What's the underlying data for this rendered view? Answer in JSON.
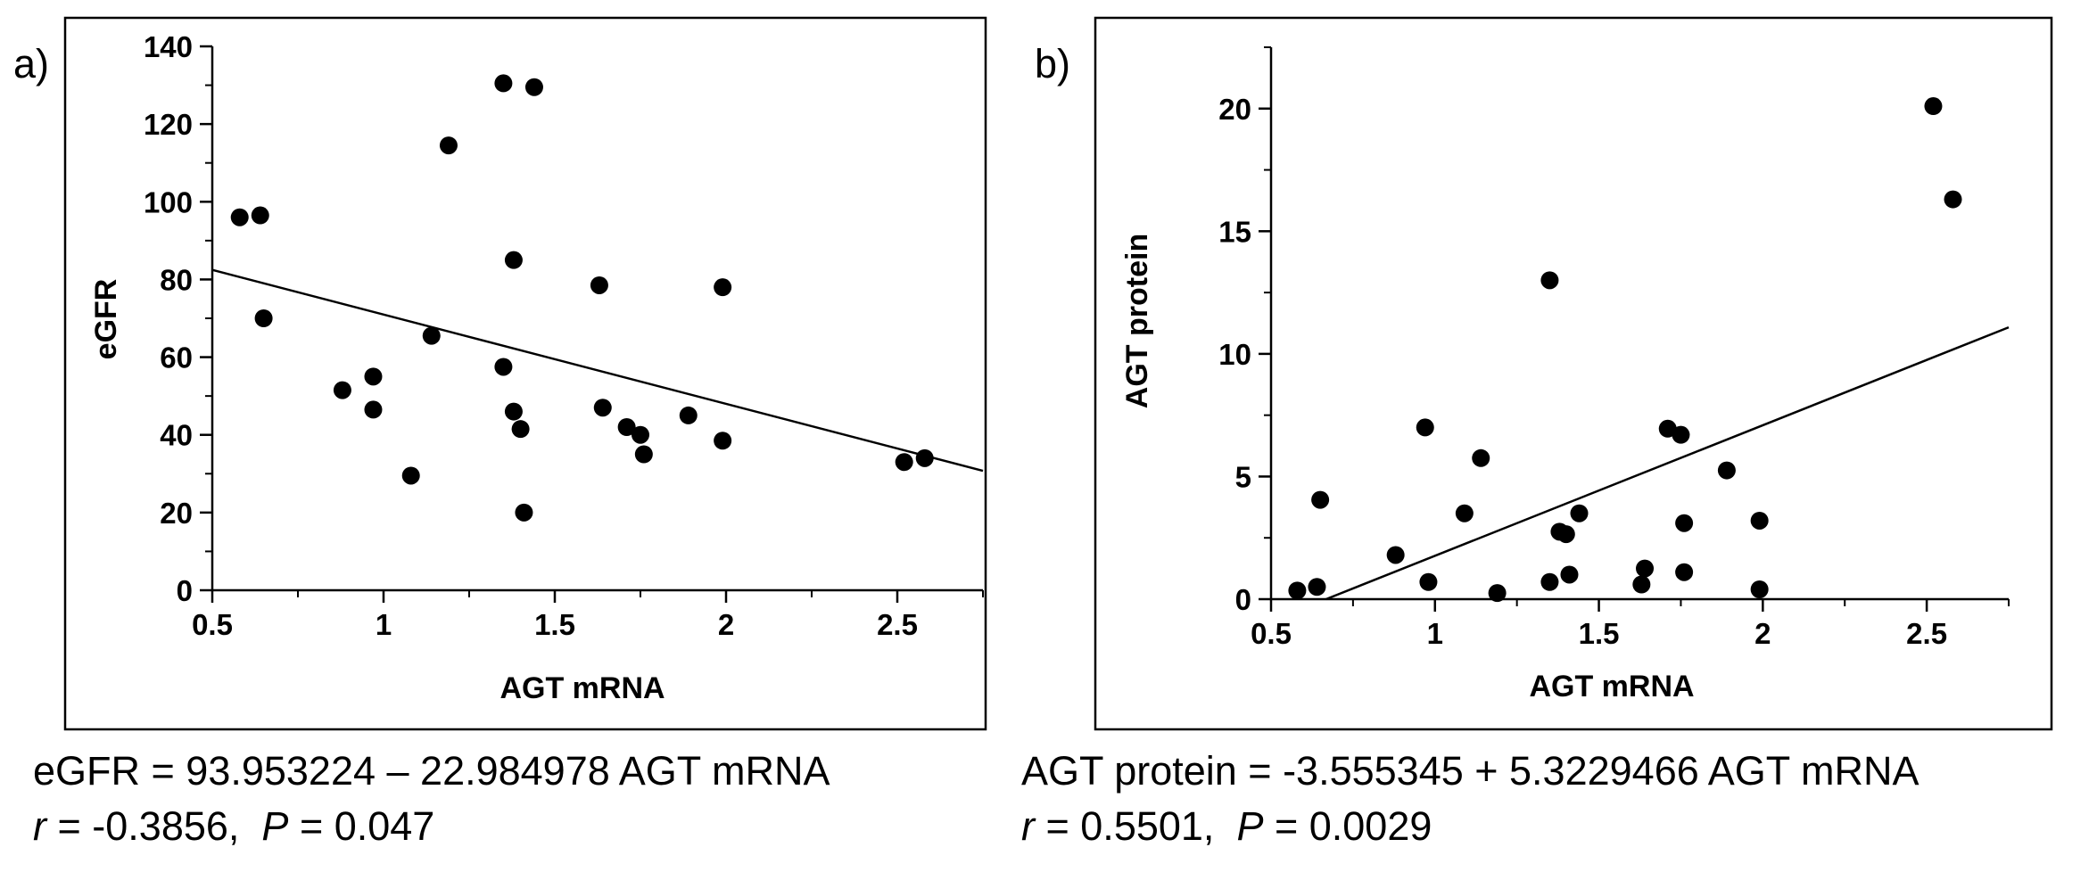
{
  "panels": [
    {
      "label": "a)",
      "xlabel": "AGT mRNA",
      "ylabel": "eGFR",
      "equation": "eGFR = 93.953224 – 22.984978  AGT mRNA",
      "r_label": "r",
      "r_value": " = -0.3856,  ",
      "p_label": "P",
      "p_value": " = 0.047"
    },
    {
      "label": "b)",
      "xlabel": "AGT mRNA",
      "ylabel": "AGT protein",
      "equation": "AGT protein = -3.555345 + 5.3229466  AGT mRNA",
      "r_label": "r",
      "r_value": " = 0.5501,  ",
      "p_label": "P",
      "p_value": " = 0.0029"
    }
  ],
  "chart_data": [
    {
      "type": "scatter",
      "title": "",
      "xlabel": "AGT mRNA",
      "ylabel": "eGFR",
      "xlim": [
        0.5,
        2.75
      ],
      "ylim": [
        0,
        140
      ],
      "xticks": [
        0.5,
        1,
        1.5,
        2,
        2.5
      ],
      "xtick_labels": [
        "0.5",
        "1",
        "1.5",
        "2",
        "2.5"
      ],
      "yticks": [
        0,
        20,
        40,
        60,
        80,
        100,
        120,
        140
      ],
      "ytick_labels": [
        "0",
        "20",
        "40",
        "60",
        "80",
        "100",
        "120",
        "140"
      ],
      "points": [
        [
          0.58,
          96
        ],
        [
          0.64,
          96.5
        ],
        [
          0.65,
          70
        ],
        [
          0.88,
          51.5
        ],
        [
          0.97,
          55
        ],
        [
          0.97,
          46.5
        ],
        [
          1.08,
          29.5
        ],
        [
          1.14,
          65.5
        ],
        [
          1.19,
          114.5
        ],
        [
          1.35,
          130.5
        ],
        [
          1.35,
          57.5
        ],
        [
          1.38,
          85
        ],
        [
          1.38,
          46
        ],
        [
          1.4,
          41.5
        ],
        [
          1.41,
          20
        ],
        [
          1.44,
          129.5
        ],
        [
          1.63,
          78.5
        ],
        [
          1.64,
          47
        ],
        [
          1.71,
          42
        ],
        [
          1.75,
          40
        ],
        [
          1.76,
          35
        ],
        [
          1.89,
          45
        ],
        [
          1.99,
          78
        ],
        [
          1.99,
          38.5
        ],
        [
          2.52,
          33
        ],
        [
          2.58,
          34
        ]
      ],
      "regression": {
        "intercept": 93.953224,
        "slope": -22.984978
      },
      "grid": false
    },
    {
      "type": "scatter",
      "title": "",
      "xlabel": "AGT mRNA",
      "ylabel": "AGT protein",
      "xlim": [
        0.5,
        2.75
      ],
      "ylim": [
        0,
        22.5
      ],
      "xticks": [
        0.5,
        1,
        1.5,
        2,
        2.5
      ],
      "xtick_labels": [
        "0.5",
        "1",
        "1.5",
        "2",
        "2.5"
      ],
      "yticks": [
        0,
        5,
        10,
        15,
        20
      ],
      "ytick_labels": [
        "0",
        "5",
        "10",
        "15",
        "20"
      ],
      "points": [
        [
          0.58,
          0.35
        ],
        [
          0.64,
          0.5
        ],
        [
          0.65,
          4.05
        ],
        [
          0.88,
          1.8
        ],
        [
          0.97,
          7
        ],
        [
          0.98,
          0.7
        ],
        [
          1.09,
          3.5
        ],
        [
          1.14,
          5.75
        ],
        [
          1.19,
          0.25
        ],
        [
          1.35,
          13
        ],
        [
          1.35,
          0.7
        ],
        [
          1.38,
          2.75
        ],
        [
          1.4,
          2.65
        ],
        [
          1.41,
          1.0
        ],
        [
          1.44,
          3.5
        ],
        [
          1.63,
          0.6
        ],
        [
          1.64,
          1.25
        ],
        [
          1.71,
          6.95
        ],
        [
          1.75,
          6.7
        ],
        [
          1.76,
          3.1
        ],
        [
          1.76,
          1.1
        ],
        [
          1.89,
          5.25
        ],
        [
          1.99,
          3.2
        ],
        [
          1.99,
          0.4
        ],
        [
          2.52,
          20.1
        ],
        [
          2.58,
          16.3
        ]
      ],
      "regression": {
        "intercept": -3.555345,
        "slope": 5.3229466
      },
      "grid": false
    }
  ]
}
